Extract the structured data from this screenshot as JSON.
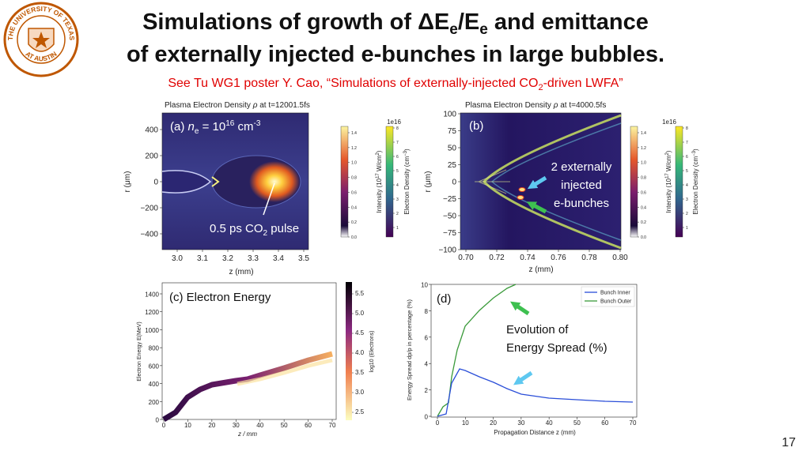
{
  "header": {
    "title_line1": [
      "Simulations of growth of ΔE",
      "e",
      "/E",
      "e",
      " and emittance"
    ],
    "title_line2": "of externally injected e-bunches in large bubbles.",
    "subtitle": [
      "See Tu WG1 poster Y. Cao, “Simulations of externally-injected CO",
      "2",
      "-driven LWFA”"
    ]
  },
  "logo": {
    "top": "THE UNIVERSITY OF TEXAS",
    "bottom": "AT AUSTIN"
  },
  "panels": [
    {
      "title": [
        "Plasma Electron Density ",
        "ρ",
        " at t=12001.5fs"
      ],
      "label": [
        "(a) ",
        "n",
        "e",
        " = 10",
        "16",
        " cm",
        "-3"
      ],
      "annotation": [
        "0.5 ps CO",
        "2",
        " pulse"
      ],
      "xlabel": "z (mm)",
      "ylabel": "r (μm)",
      "xticks": [
        "3.0",
        "3.1",
        "3.2",
        "3.3",
        "3.4",
        "3.5"
      ],
      "yticks": [
        "400",
        "200",
        "0",
        "−200",
        "−400"
      ],
      "colorbars": [
        {
          "label": [
            "Intensity (10",
            "17",
            " W/cm",
            "2",
            ")"
          ],
          "ticks": [
            "0.0",
            "0.2",
            "0.4",
            "0.6",
            "0.8",
            "1.0",
            "1.2",
            "1.4"
          ]
        },
        {
          "label": [
            "Electron Density (cm",
            "−3",
            ")"
          ],
          "multiplier": "1e16",
          "ticks": [
            "1",
            "2",
            "3",
            "4",
            "5",
            "6",
            "7",
            "8"
          ]
        }
      ]
    },
    {
      "title": [
        "Plasma Electron Density ",
        "ρ",
        " at t=4000.5fs"
      ],
      "label": "(b)",
      "annotation": [
        "2 externally",
        "injected",
        "e-bunches"
      ],
      "xlabel": "z (mm)",
      "ylabel": "r (μm)",
      "xticks": [
        "0.70",
        "0.72",
        "0.74",
        "0.76",
        "0.78",
        "0.80"
      ],
      "yticks": [
        "100",
        "75",
        "50",
        "25",
        "0",
        "−25",
        "−50",
        "−75",
        "−100"
      ],
      "colorbars": [
        {
          "label": [
            "Intensity (10",
            "17",
            " W/cm",
            "2",
            ")"
          ],
          "ticks": [
            "0.0",
            "0.2",
            "0.4",
            "0.6",
            "0.8",
            "1.0",
            "1.2",
            "1.4"
          ]
        },
        {
          "label": [
            "Electron Density (cm",
            "−3",
            ")"
          ],
          "multiplier": "1e16",
          "ticks": [
            "1",
            "2",
            "3",
            "4",
            "5",
            "6",
            "7",
            "8"
          ]
        }
      ]
    },
    {
      "label": "(c) Electron Energy",
      "xlabel": "z / mm",
      "ylabel": "Electron Energy E(MeV)",
      "xticks": [
        "0",
        "10",
        "20",
        "30",
        "40",
        "50",
        "60",
        "70"
      ],
      "yticks": [
        "1400",
        "1200",
        "1000",
        "800",
        "600",
        "400",
        "200",
        "0"
      ],
      "colorbars": [
        {
          "label": "log10 (Electrons)",
          "ticks": [
            "5.5",
            "5.0",
            "4.5",
            "4.0",
            "3.5",
            "3.0",
            "2.5"
          ]
        }
      ]
    },
    {
      "label": "(d)",
      "annotation": [
        "Evolution of",
        "Energy Spread (%)"
      ],
      "xlabel": "Propagation Distance z (mm)",
      "ylabel": "Energy Spread dp/p in percentage (%)",
      "xticks": [
        "0",
        "10",
        "20",
        "30",
        "40",
        "50",
        "60",
        "70"
      ],
      "yticks": [
        "10",
        "8",
        "6",
        "4",
        "2",
        "0"
      ],
      "legend": [
        "Bunch Inner",
        "Bunch Outer"
      ]
    }
  ],
  "page_number": "17"
}
